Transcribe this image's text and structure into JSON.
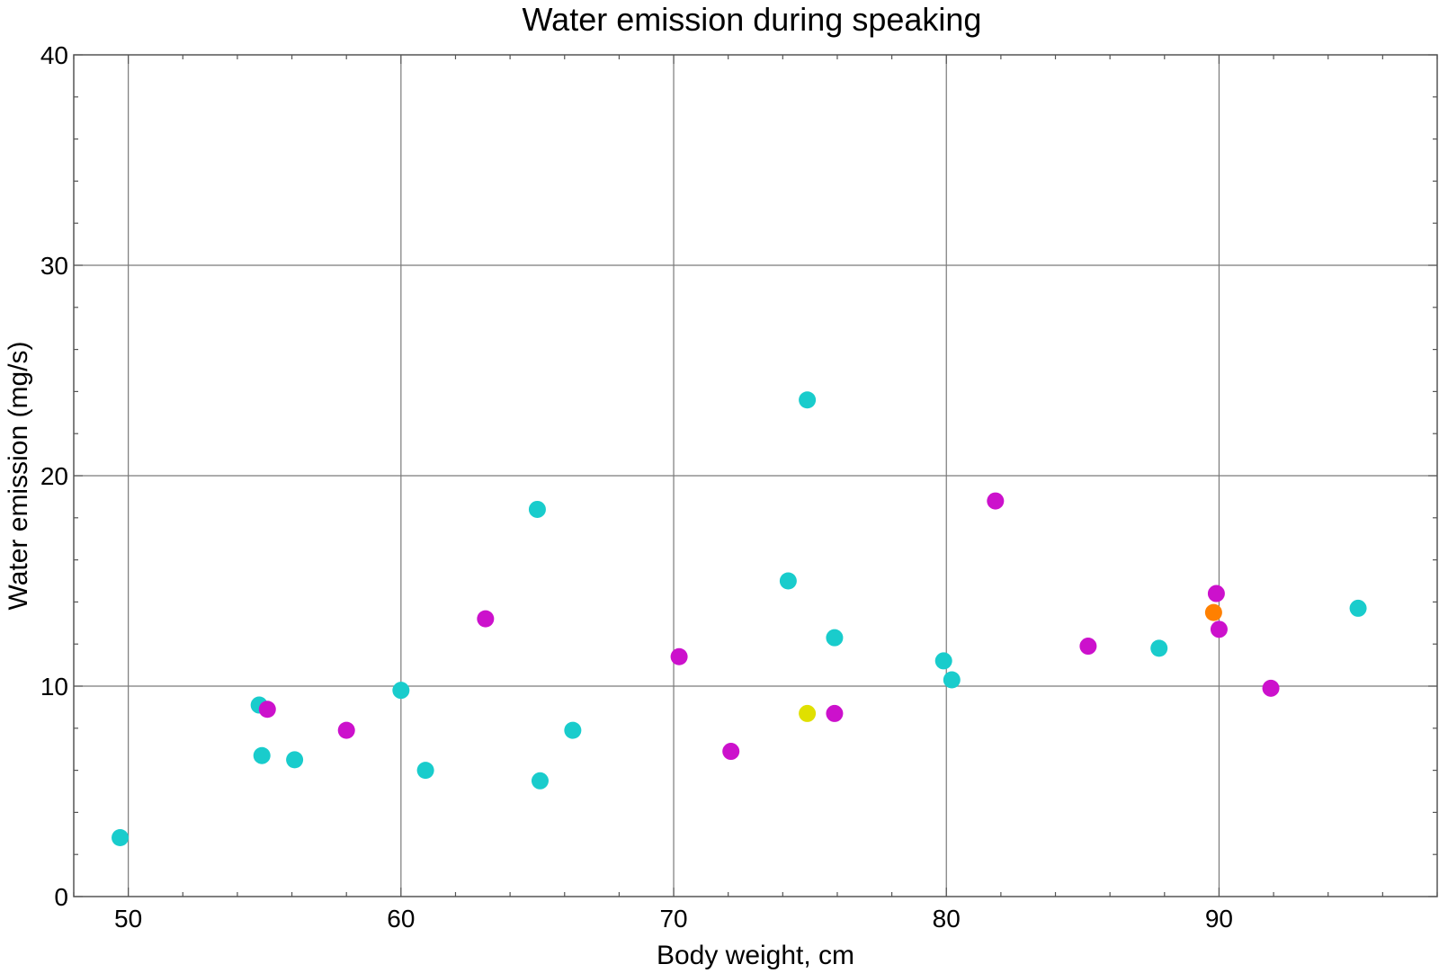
{
  "chart_data": {
    "type": "scatter",
    "title": "Water emission during speaking",
    "xlabel": "Body weight,  cm",
    "ylabel": "Water emission (mg/s)",
    "xlim": [
      48,
      98
    ],
    "ylim": [
      0,
      40
    ],
    "x_ticks": [
      50,
      60,
      70,
      80,
      90
    ],
    "y_ticks": [
      0,
      10,
      20,
      30,
      40
    ],
    "x_minor_step": 2,
    "y_minor_step": 2,
    "grid": true,
    "legend": "none",
    "colors": {
      "cyan": "#19cccc",
      "magenta": "#cc11cc",
      "orange": "#ff8000",
      "yellow": "#e0e000"
    },
    "points": [
      {
        "x": 49.7,
        "y": 2.8,
        "color": "cyan"
      },
      {
        "x": 54.8,
        "y": 9.1,
        "color": "cyan"
      },
      {
        "x": 55.1,
        "y": 8.9,
        "color": "magenta"
      },
      {
        "x": 54.9,
        "y": 6.7,
        "color": "cyan"
      },
      {
        "x": 56.1,
        "y": 6.5,
        "color": "cyan"
      },
      {
        "x": 58.0,
        "y": 7.9,
        "color": "magenta"
      },
      {
        "x": 60.0,
        "y": 9.8,
        "color": "cyan"
      },
      {
        "x": 60.9,
        "y": 6.0,
        "color": "cyan"
      },
      {
        "x": 63.1,
        "y": 13.2,
        "color": "magenta"
      },
      {
        "x": 65.0,
        "y": 18.4,
        "color": "cyan"
      },
      {
        "x": 65.1,
        "y": 5.5,
        "color": "cyan"
      },
      {
        "x": 66.3,
        "y": 7.9,
        "color": "cyan"
      },
      {
        "x": 70.2,
        "y": 11.4,
        "color": "magenta"
      },
      {
        "x": 72.1,
        "y": 6.9,
        "color": "magenta"
      },
      {
        "x": 74.2,
        "y": 15.0,
        "color": "cyan"
      },
      {
        "x": 74.9,
        "y": 23.6,
        "color": "cyan"
      },
      {
        "x": 74.9,
        "y": 8.7,
        "color": "yellow"
      },
      {
        "x": 75.9,
        "y": 12.3,
        "color": "cyan"
      },
      {
        "x": 75.9,
        "y": 8.7,
        "color": "magenta"
      },
      {
        "x": 79.9,
        "y": 11.2,
        "color": "cyan"
      },
      {
        "x": 80.2,
        "y": 10.3,
        "color": "cyan"
      },
      {
        "x": 81.8,
        "y": 18.8,
        "color": "magenta"
      },
      {
        "x": 85.2,
        "y": 11.9,
        "color": "magenta"
      },
      {
        "x": 87.8,
        "y": 11.8,
        "color": "cyan"
      },
      {
        "x": 89.8,
        "y": 13.5,
        "color": "orange"
      },
      {
        "x": 89.9,
        "y": 14.4,
        "color": "magenta"
      },
      {
        "x": 90.0,
        "y": 12.7,
        "color": "magenta"
      },
      {
        "x": 91.9,
        "y": 9.9,
        "color": "magenta"
      },
      {
        "x": 95.1,
        "y": 13.7,
        "color": "cyan"
      }
    ]
  }
}
